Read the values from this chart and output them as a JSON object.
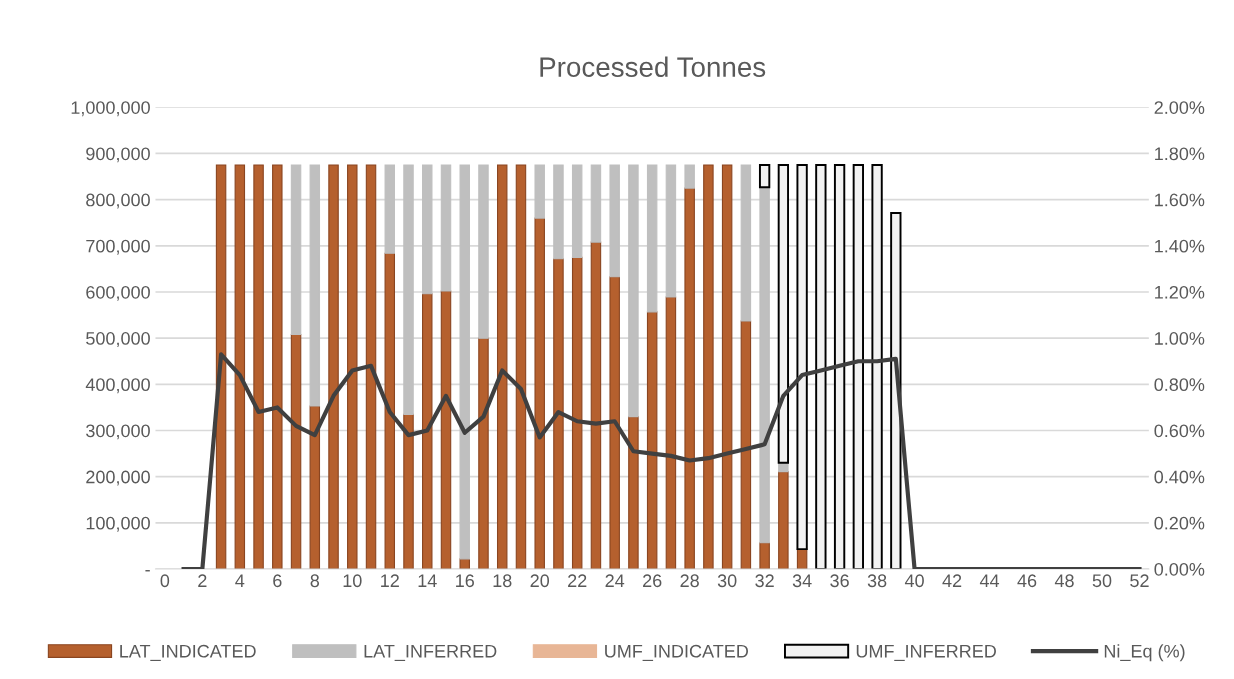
{
  "chart_data": {
    "type": "bar",
    "title": "Processed Tonnes",
    "stacked": true,
    "grid": "y",
    "legend": "bottom",
    "x": [
      1,
      2,
      3,
      4,
      5,
      6,
      7,
      8,
      9,
      10,
      11,
      12,
      13,
      14,
      15,
      16,
      17,
      18,
      19,
      20,
      21,
      22,
      23,
      24,
      25,
      26,
      27,
      28,
      29,
      30,
      31,
      32,
      33,
      34,
      35,
      36,
      37,
      38,
      39,
      40,
      41,
      42,
      43,
      44,
      45,
      46,
      47,
      48,
      49,
      50,
      51,
      52
    ],
    "xlim": [
      -0.5,
      52.5
    ],
    "xticks": [
      0,
      2,
      4,
      6,
      8,
      10,
      12,
      14,
      16,
      18,
      20,
      22,
      24,
      26,
      28,
      30,
      32,
      34,
      36,
      38,
      40,
      42,
      44,
      46,
      48,
      50,
      52
    ],
    "ylim": [
      0,
      1000000
    ],
    "yticks": [
      {
        "value": 0,
        "label": "-"
      },
      {
        "value": 100000,
        "label": "100,000"
      },
      {
        "value": 200000,
        "label": "200,000"
      },
      {
        "value": 300000,
        "label": "300,000"
      },
      {
        "value": 400000,
        "label": "400,000"
      },
      {
        "value": 500000,
        "label": "500,000"
      },
      {
        "value": 600000,
        "label": "600,000"
      },
      {
        "value": 700000,
        "label": "700,000"
      },
      {
        "value": 800000,
        "label": "800,000"
      },
      {
        "value": 900000,
        "label": "900,000"
      },
      {
        "value": 1000000,
        "label": "1,000,000"
      }
    ],
    "y2lim": [
      0,
      2
    ],
    "y2ticks": [
      {
        "value": 0,
        "label": "0.00%"
      },
      {
        "value": 0.2,
        "label": "0.20%"
      },
      {
        "value": 0.4,
        "label": "0.40%"
      },
      {
        "value": 0.6,
        "label": "0.60%"
      },
      {
        "value": 0.8,
        "label": "0.80%"
      },
      {
        "value": 1.0,
        "label": "1.00%"
      },
      {
        "value": 1.2,
        "label": "1.20%"
      },
      {
        "value": 1.4,
        "label": "1.40%"
      },
      {
        "value": 1.6,
        "label": "1.60%"
      },
      {
        "value": 1.8,
        "label": "1.80%"
      },
      {
        "value": 2.0,
        "label": "2.00%"
      }
    ],
    "series": [
      {
        "name": "LAT_INDICATED",
        "color": "#b5602e",
        "values": [
          null,
          null,
          875000,
          875000,
          875000,
          875000,
          508000,
          353000,
          875000,
          875000,
          875000,
          684000,
          335000,
          596000,
          602000,
          22000,
          500000,
          875000,
          875000,
          760000,
          672000,
          675000,
          708000,
          633000,
          330000,
          557000,
          589000,
          825000,
          875000,
          875000,
          537000,
          57000,
          211000,
          43000,
          null,
          null,
          null,
          null,
          null,
          null,
          null,
          null,
          null,
          null,
          null,
          null,
          null,
          null,
          null,
          null,
          null,
          null
        ]
      },
      {
        "name": "LAT_INFERRED",
        "color": "#bfbfbf",
        "values": [
          null,
          null,
          null,
          null,
          null,
          null,
          367000,
          522000,
          null,
          null,
          null,
          191000,
          540000,
          279000,
          273000,
          853000,
          375000,
          null,
          null,
          115000,
          203000,
          200000,
          167000,
          242000,
          545000,
          318000,
          286000,
          50000,
          null,
          null,
          338000,
          770000,
          19000,
          null,
          null,
          null,
          null,
          null,
          null,
          null,
          null,
          null,
          null,
          null,
          null,
          null,
          null,
          null,
          null,
          null,
          null,
          null
        ]
      },
      {
        "name": "UMF_INDICATED",
        "color": "#e8b696",
        "values": [
          null,
          null,
          null,
          null,
          null,
          null,
          null,
          null,
          null,
          null,
          null,
          null,
          null,
          null,
          null,
          null,
          null,
          null,
          null,
          null,
          null,
          null,
          null,
          null,
          null,
          null,
          null,
          null,
          null,
          null,
          null,
          null,
          null,
          null,
          null,
          null,
          null,
          null,
          null,
          null,
          null,
          null,
          null,
          null,
          null,
          null,
          null,
          null,
          null,
          null,
          null,
          null
        ]
      },
      {
        "name": "UMF_INFERRED",
        "color": "#f2f2f2",
        "values": [
          null,
          null,
          null,
          null,
          null,
          null,
          null,
          null,
          null,
          null,
          null,
          null,
          null,
          null,
          null,
          null,
          null,
          null,
          null,
          null,
          null,
          null,
          null,
          null,
          null,
          null,
          null,
          null,
          null,
          null,
          null,
          48000,
          645000,
          832000,
          875000,
          875000,
          875000,
          875000,
          771000,
          null,
          null,
          null,
          null,
          null,
          null,
          null,
          null,
          null,
          null,
          null,
          null,
          null
        ]
      },
      {
        "name": "Ni_Eq (%)",
        "type": "line",
        "axis": "y2",
        "color": "#404040",
        "values": [
          0,
          0,
          0.93,
          0.84,
          0.68,
          0.7,
          0.62,
          0.58,
          0.75,
          0.86,
          0.88,
          0.68,
          0.58,
          0.6,
          0.75,
          0.59,
          0.66,
          0.86,
          0.78,
          0.57,
          0.68,
          0.64,
          0.63,
          0.64,
          0.51,
          0.5,
          0.49,
          0.47,
          0.48,
          0.5,
          0.52,
          0.54,
          0.75,
          0.84,
          0.86,
          0.88,
          0.9,
          0.9,
          0.91,
          0,
          0,
          0,
          0,
          0,
          0,
          0,
          0,
          0,
          0,
          0,
          0,
          0
        ]
      }
    ]
  }
}
